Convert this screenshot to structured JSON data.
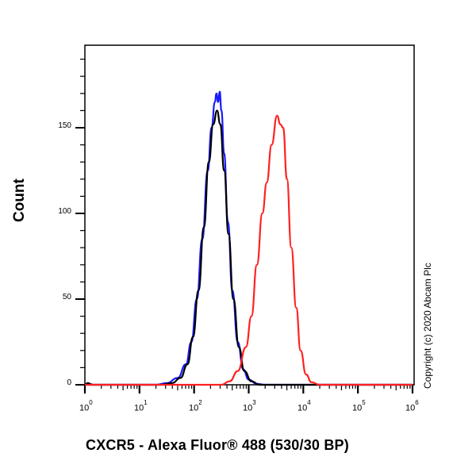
{
  "chart_data": {
    "type": "line",
    "title": "",
    "xlabel": "CXCR5 - Alexa Fluor® 488 (530/30 BP)",
    "ylabel": "Count",
    "xscale": "log",
    "xlim": [
      1,
      1000000
    ],
    "ylim": [
      0,
      198
    ],
    "x_ticks": [
      "10^0",
      "10^1",
      "10^2",
      "10^3",
      "10^4",
      "10^5",
      "10^6"
    ],
    "y_ticks": [
      0,
      50,
      100,
      150
    ],
    "grid": false,
    "legend": null,
    "annotation": "Copyright (c) 2020 Abcam Plc",
    "series": [
      {
        "name": "blue",
        "color": "#1a1aff",
        "points_log10x_count": [
          [
            0,
            0
          ],
          [
            1.3,
            0
          ],
          [
            1.5,
            1
          ],
          [
            1.7,
            4
          ],
          [
            1.85,
            12
          ],
          [
            1.95,
            25
          ],
          [
            2.05,
            50
          ],
          [
            2.15,
            85
          ],
          [
            2.25,
            125
          ],
          [
            2.32,
            150
          ],
          [
            2.38,
            165
          ],
          [
            2.41,
            170
          ],
          [
            2.44,
            165
          ],
          [
            2.47,
            171
          ],
          [
            2.5,
            160
          ],
          [
            2.55,
            135
          ],
          [
            2.62,
            95
          ],
          [
            2.7,
            55
          ],
          [
            2.8,
            25
          ],
          [
            2.9,
            9
          ],
          [
            3.0,
            3
          ],
          [
            3.15,
            0.5
          ],
          [
            3.3,
            0
          ],
          [
            6,
            0
          ]
        ]
      },
      {
        "name": "black",
        "color": "#000000",
        "points_log10x_count": [
          [
            0,
            0
          ],
          [
            0.05,
            1
          ],
          [
            0.15,
            0
          ],
          [
            1.4,
            0
          ],
          [
            1.6,
            1
          ],
          [
            1.75,
            4
          ],
          [
            1.88,
            12
          ],
          [
            1.98,
            28
          ],
          [
            2.08,
            55
          ],
          [
            2.18,
            92
          ],
          [
            2.27,
            130
          ],
          [
            2.35,
            152
          ],
          [
            2.42,
            160
          ],
          [
            2.48,
            152
          ],
          [
            2.55,
            125
          ],
          [
            2.63,
            88
          ],
          [
            2.72,
            50
          ],
          [
            2.82,
            22
          ],
          [
            2.92,
            8
          ],
          [
            3.05,
            2
          ],
          [
            3.2,
            0
          ],
          [
            6,
            0
          ]
        ]
      },
      {
        "name": "red",
        "color": "#ff2020",
        "points_log10x_count": [
          [
            0,
            0
          ],
          [
            2.5,
            0
          ],
          [
            2.65,
            2
          ],
          [
            2.8,
            8
          ],
          [
            2.95,
            22
          ],
          [
            3.05,
            40
          ],
          [
            3.15,
            70
          ],
          [
            3.25,
            100
          ],
          [
            3.33,
            118
          ],
          [
            3.42,
            140
          ],
          [
            3.52,
            157
          ],
          [
            3.58,
            152
          ],
          [
            3.63,
            150
          ],
          [
            3.7,
            120
          ],
          [
            3.78,
            80
          ],
          [
            3.87,
            45
          ],
          [
            3.95,
            20
          ],
          [
            4.05,
            6
          ],
          [
            4.15,
            1.5
          ],
          [
            4.3,
            0
          ],
          [
            6,
            0
          ]
        ]
      }
    ]
  },
  "labels": {
    "ylabel": "Count",
    "xlabel": "CXCR5 - Alexa Fluor® 488 (530/30 BP)",
    "copyright": "Copyright (c) 2020 Abcam Plc",
    "yticks": [
      "0",
      "50",
      "100",
      "150"
    ],
    "xtick_base": "10",
    "xtick_exps": [
      "0",
      "1",
      "2",
      "3",
      "4",
      "5",
      "6"
    ]
  }
}
